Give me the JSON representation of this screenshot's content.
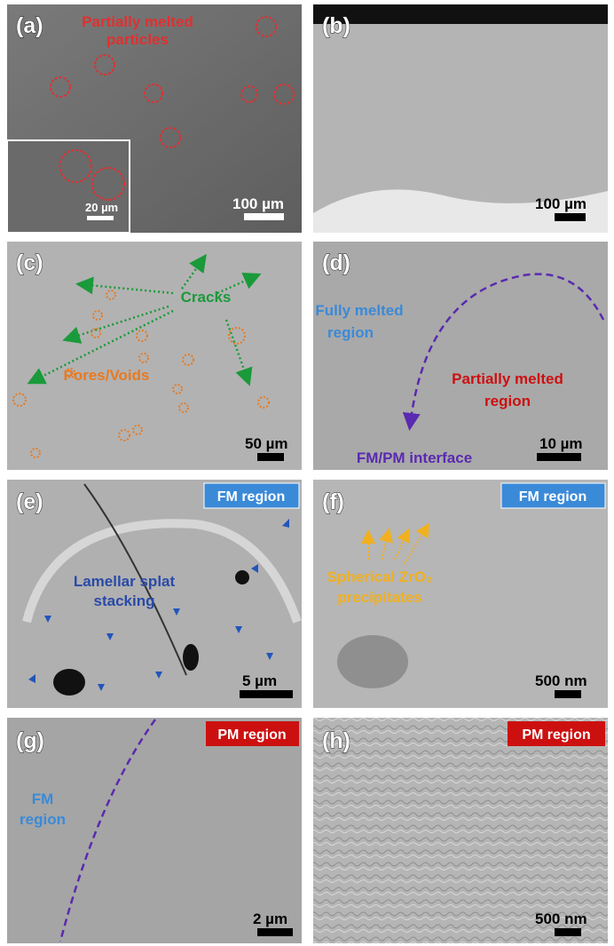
{
  "panels": [
    {
      "label": "(a)",
      "annotation": [
        "Partially melted",
        "particles"
      ],
      "inset_scale": "20 µm",
      "scale": "100 µm"
    },
    {
      "label": "(b)",
      "scale": "100 µm"
    },
    {
      "label": "(c)",
      "cracks": "Cracks",
      "pores": "Pores/Voids",
      "scale": "50 µm"
    },
    {
      "label": "(d)",
      "fully_melted": [
        "Fully melted",
        "region"
      ],
      "partially_melted": [
        "Partially melted",
        "region"
      ],
      "interface": "FM/PM interface",
      "scale": "10 µm"
    },
    {
      "label": "(e)",
      "badge": "FM region",
      "annotation": [
        "Lamellar splat",
        "stacking"
      ],
      "scale": "5 µm"
    },
    {
      "label": "(f)",
      "badge": "FM region",
      "annotation": [
        "Spherical ZrO₂",
        "precipitates"
      ],
      "scale": "500 nm"
    },
    {
      "label": "(g)",
      "badge": "PM region",
      "annotation": [
        "FM",
        "region"
      ],
      "scale": "2 µm"
    },
    {
      "label": "(h)",
      "badge": "PM region",
      "scale": "500 nm"
    }
  ]
}
